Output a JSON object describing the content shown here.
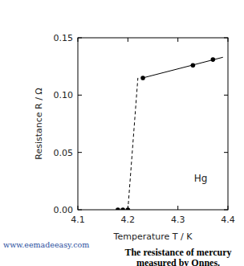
{
  "chart_data": {
    "type": "scatter",
    "title": [
      "The resistance of mercury",
      "measured by Onnes."
    ],
    "source": "www.eemadeeasy.com",
    "x_label": "Temperature T / K",
    "y_label": "Resistance R / Ω",
    "annotations": [
      "Hg"
    ],
    "xlim": [
      4.1,
      4.4
    ],
    "xticks": [
      4.1,
      4.2,
      4.3,
      4.4
    ],
    "ylim": [
      0,
      0.15
    ],
    "yticks": [
      {
        "value": 0,
        "label": "0.00"
      },
      {
        "value": 0.05,
        "label": "0.05"
      },
      {
        "value": 0.1,
        "label": "0.10"
      },
      {
        "value": 0.15,
        "label": "0.15"
      }
    ],
    "grid": false,
    "color": "#000000",
    "series": [
      {
        "type": "scatter",
        "marker": "circle",
        "color": "#000000",
        "x": [
          4.18,
          4.19,
          4.2,
          4.23,
          4.33,
          4.37
        ],
        "values": [
          0,
          0,
          0,
          0.115,
          0.126,
          0.131
        ]
      },
      {
        "type": "line",
        "line_style": "solid",
        "color": "#000000",
        "x": [
          4.23,
          4.39
        ],
        "values": [
          0.115,
          0.133
        ]
      },
      {
        "type": "line",
        "line_style": "dashed",
        "color": "#000000",
        "x": [
          4.2,
          4.22
        ],
        "values": [
          0,
          0.115
        ]
      }
    ]
  }
}
